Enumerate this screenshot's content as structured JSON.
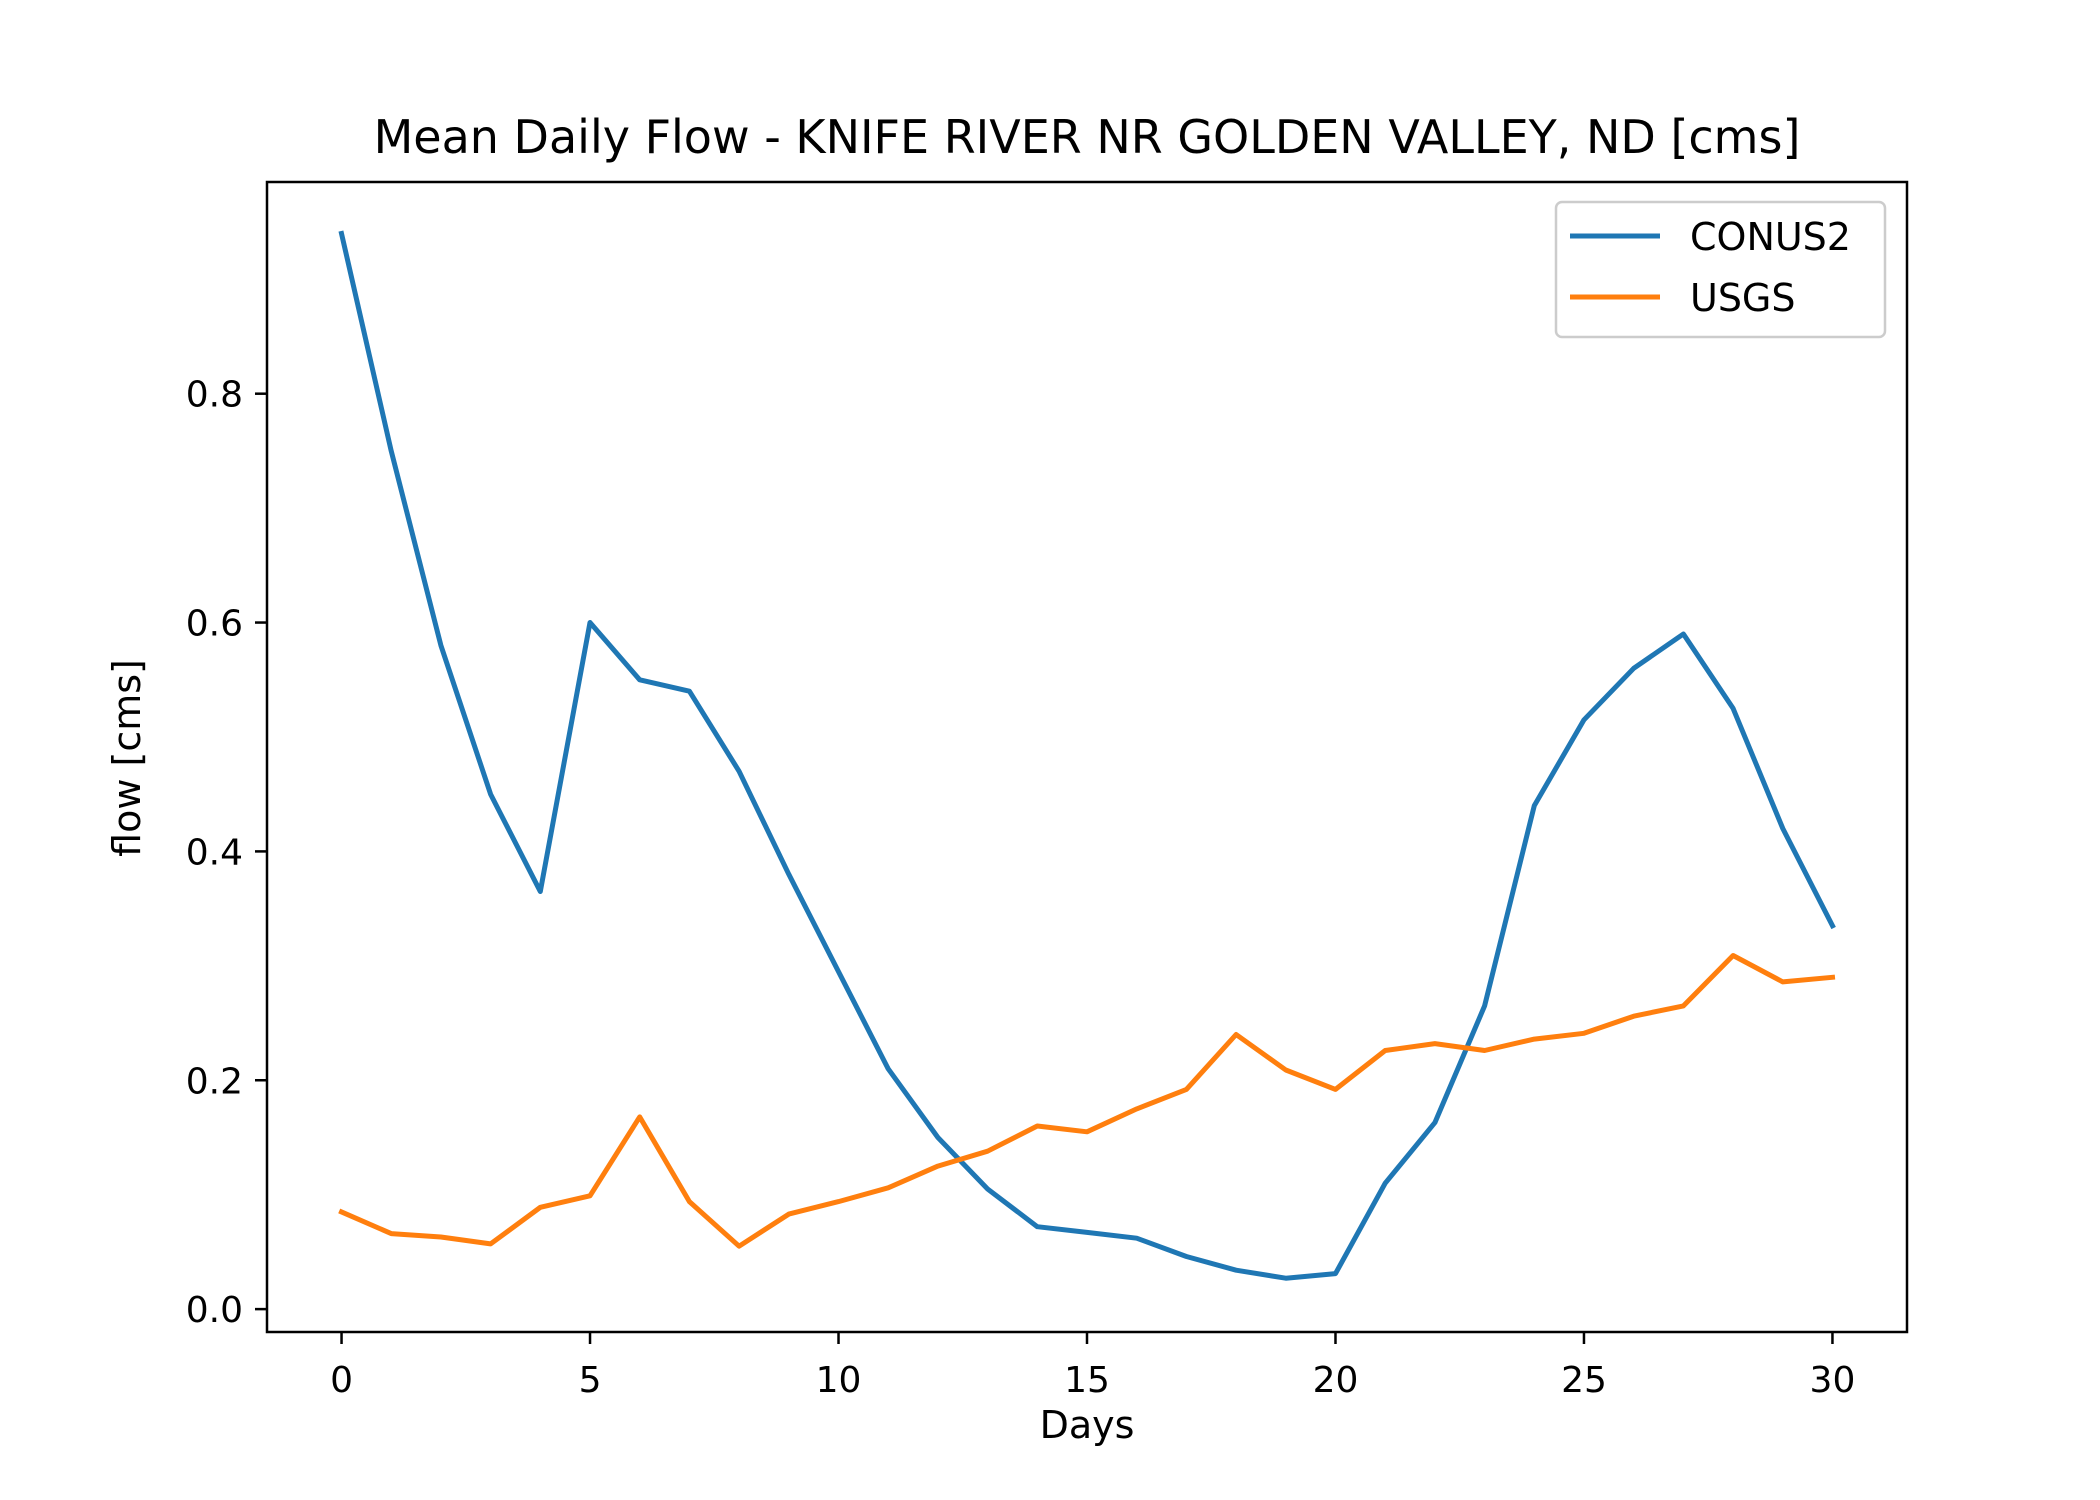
{
  "chart_data": {
    "type": "line",
    "title": "Mean Daily Flow - KNIFE RIVER NR GOLDEN VALLEY, ND [cms]",
    "xlabel": "Days",
    "ylabel": "flow [cms]",
    "xlim": [
      -1.5,
      31.5
    ],
    "ylim": [
      -0.02,
      0.985
    ],
    "xticks": [
      0,
      5,
      10,
      15,
      20,
      25,
      30
    ],
    "xtick_labels": [
      "0",
      "5",
      "10",
      "15",
      "20",
      "25",
      "30"
    ],
    "yticks": [
      0.0,
      0.2,
      0.4,
      0.6,
      0.8
    ],
    "ytick_labels": [
      "0.0",
      "0.2",
      "0.4",
      "0.6",
      "0.8"
    ],
    "grid": false,
    "legend_position": "top-right",
    "x": [
      0,
      1,
      2,
      3,
      4,
      5,
      6,
      7,
      8,
      9,
      10,
      11,
      12,
      13,
      14,
      15,
      16,
      17,
      18,
      19,
      20,
      21,
      22,
      23,
      24,
      25,
      26,
      27,
      28,
      29,
      30
    ],
    "series": [
      {
        "name": "CONUS2",
        "color": "#1f77b4",
        "values": [
          0.94,
          0.75,
          0.58,
          0.45,
          0.365,
          0.6,
          0.55,
          0.54,
          0.47,
          0.38,
          0.295,
          0.21,
          0.15,
          0.105,
          0.072,
          0.067,
          0.062,
          0.046,
          0.034,
          0.027,
          0.031,
          0.11,
          0.163,
          0.265,
          0.44,
          0.515,
          0.56,
          0.59,
          0.525,
          0.42,
          0.335
        ]
      },
      {
        "name": "USGS",
        "color": "#ff7f0e",
        "values": [
          0.085,
          0.066,
          0.063,
          0.057,
          0.089,
          0.099,
          0.168,
          0.094,
          0.055,
          0.083,
          0.094,
          0.106,
          0.125,
          0.138,
          0.16,
          0.155,
          0.175,
          0.192,
          0.24,
          0.209,
          0.192,
          0.226,
          0.232,
          0.226,
          0.236,
          0.241,
          0.256,
          0.265,
          0.309,
          0.286,
          0.29
        ]
      }
    ]
  }
}
